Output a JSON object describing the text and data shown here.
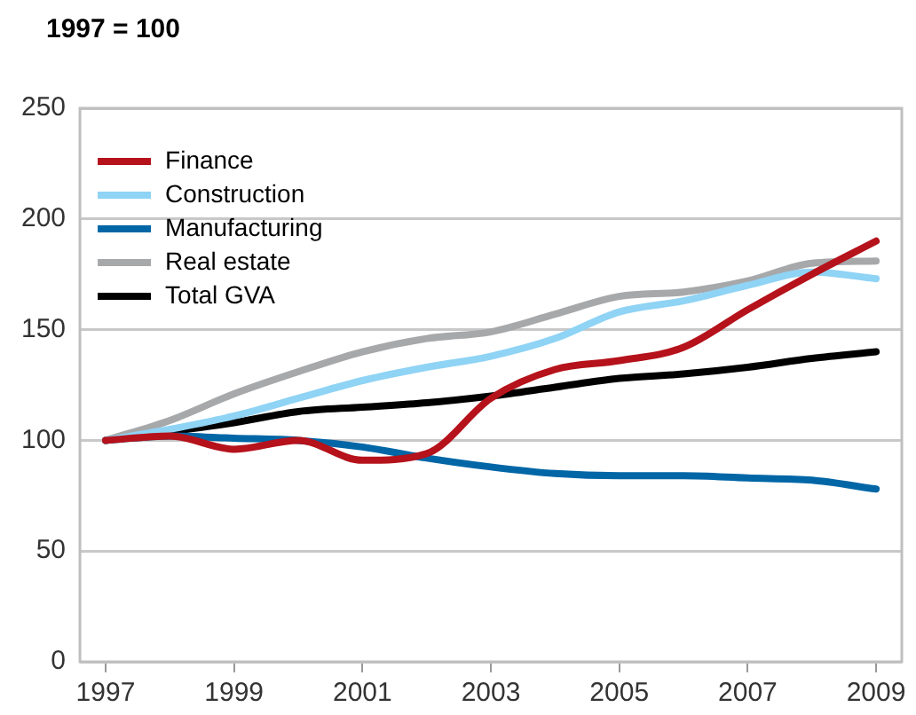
{
  "chart_data": {
    "type": "line",
    "title": "1997 = 100",
    "x": [
      1997,
      1998,
      1999,
      2000,
      2001,
      2002,
      2003,
      2004,
      2005,
      2006,
      2007,
      2008,
      2009
    ],
    "series": [
      {
        "name": "Finance",
        "color": "#b5121b",
        "values": [
          100,
          102,
          96,
          100,
          91,
          94,
          119,
          132,
          136,
          142,
          159,
          175,
          190
        ]
      },
      {
        "name": "Construction",
        "color": "#8fd3f5",
        "values": [
          100,
          105,
          111,
          119,
          127,
          133,
          138,
          146,
          158,
          163,
          170,
          176,
          173
        ]
      },
      {
        "name": "Manufacturing",
        "color": "#0066a6",
        "values": [
          100,
          102,
          101,
          100,
          97,
          92,
          88,
          85,
          84,
          84,
          83,
          82,
          78
        ]
      },
      {
        "name": "Real estate",
        "color": "#a7a8aa",
        "values": [
          100,
          109,
          121,
          131,
          140,
          146,
          149,
          157,
          165,
          167,
          172,
          180,
          181
        ]
      },
      {
        "name": "Total GVA",
        "color": "#000000",
        "values": [
          100,
          104,
          108,
          113,
          115,
          117,
          120,
          124,
          128,
          130,
          133,
          137,
          140
        ]
      }
    ],
    "xlim": [
      1996.6,
      2009.4
    ],
    "xticks": [
      1997,
      1999,
      2001,
      2003,
      2005,
      2007,
      2009
    ],
    "ylim": [
      0,
      250
    ],
    "yticks": [
      0,
      50,
      100,
      150,
      200,
      250
    ],
    "grid": "y",
    "legend": "top left",
    "marker": "none",
    "line_style": "solid"
  }
}
